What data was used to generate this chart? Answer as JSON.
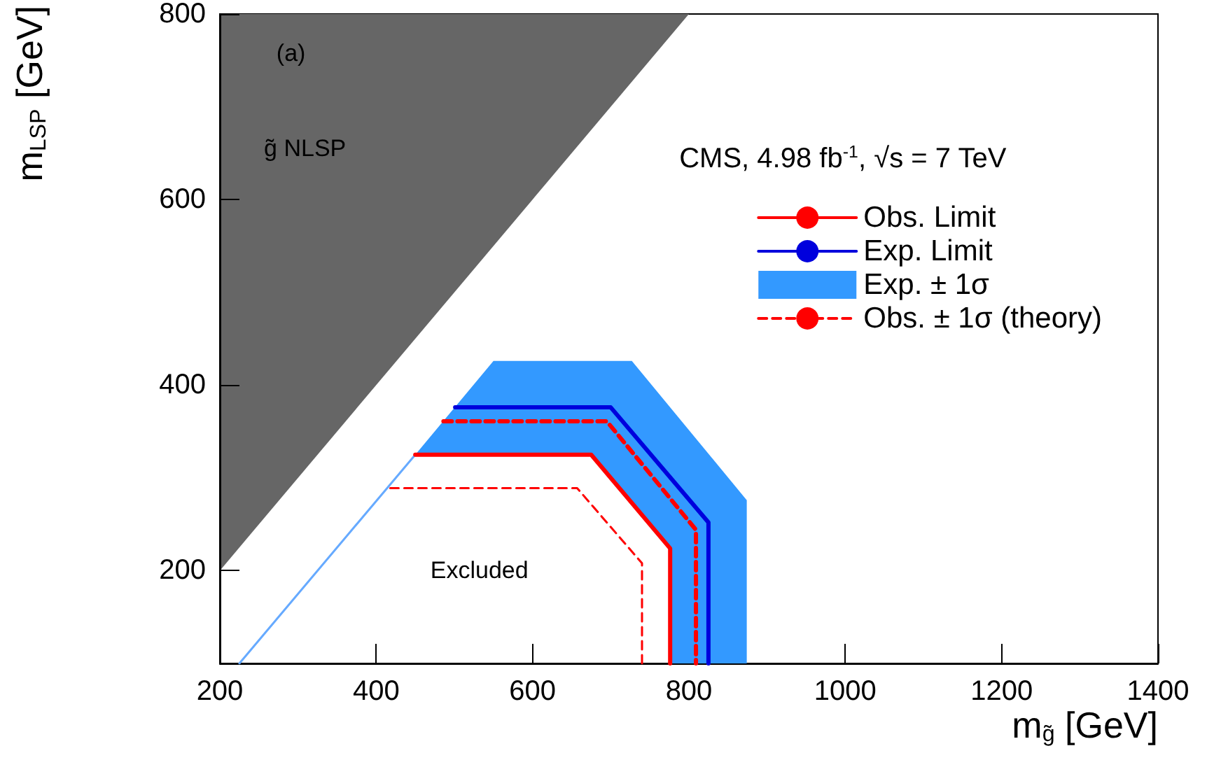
{
  "chart_data": {
    "type": "line",
    "xlabel": "m$_{g̃}$ [GeV]",
    "ylabel": "m$_{LSP}$ [GeV]",
    "xlim": [
      200,
      1400
    ],
    "xticks": [
      200,
      400,
      600,
      800,
      1000,
      1200,
      1400
    ],
    "ylim": [
      100,
      800
    ],
    "yticks": [
      200,
      400,
      600,
      800
    ],
    "grid": false,
    "legend": "top right",
    "marker": "none",
    "series": [
      {
        "type": "area",
        "color": "#666666",
        "x": [
          200,
          800,
          200
        ],
        "values": [
          200,
          800,
          800
        ]
      },
      {
        "name": "Exp. ± 1σ",
        "type": "area",
        "color": "#3399ff",
        "x": [
          450,
          550,
          727,
          874,
          874,
          776,
          776,
          675,
          450
        ],
        "values": [
          325,
          426,
          426,
          276,
          100,
          100,
          224,
          325,
          325
        ]
      },
      {
        "color": "#66aaff",
        "x": [
          225,
          450
        ],
        "values": [
          100,
          325
        ]
      },
      {
        "name": "Obs. Limit",
        "color": "#ff0000",
        "line_style": "solid",
        "x": [
          450,
          675,
          776,
          776
        ],
        "values": [
          325,
          325,
          224,
          100
        ]
      },
      {
        "name": "Exp. Limit",
        "color": "#0000dd",
        "line_style": "solid",
        "x": [
          501,
          700,
          825,
          825
        ],
        "values": [
          376,
          376,
          252,
          100
        ]
      },
      {
        "name": "Obs. ± 1σ (theory)",
        "color": "#ff0000",
        "line_style": "dashed",
        "x": [
          486,
          695,
          809,
          809
        ],
        "values": [
          361,
          361,
          244,
          100
        ]
      },
      {
        "color": "#ff0000",
        "line_style": "dashed",
        "x": [
          418,
          657,
          740,
          740
        ],
        "values": [
          289,
          289,
          208,
          100
        ]
      }
    ],
    "annotations": [
      "(a)",
      "g̃ NLSP",
      "CMS, 4.98 fb$^{-1}$, √s = 7 TeV",
      "Excluded"
    ]
  }
}
